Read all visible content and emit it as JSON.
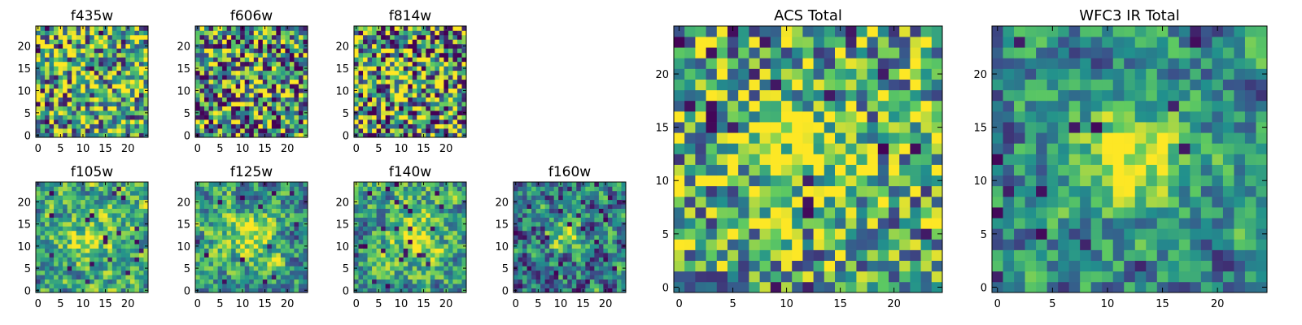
{
  "figure": {
    "background": "#ffffff",
    "colormap": "viridis",
    "colormap_stops": [
      "#440154",
      "#3b528b",
      "#21908d",
      "#5dc962",
      "#fde725"
    ]
  },
  "chart_data": [
    {
      "type": "heatmap",
      "title": "f435w",
      "x_ticks": [
        "0",
        "5",
        "10",
        "15",
        "20"
      ],
      "y_ticks": [
        "0",
        "5",
        "10",
        "15",
        "20"
      ],
      "grid_size": 25,
      "xlim": [
        -0.5,
        24.5
      ],
      "ylim": [
        -0.5,
        24.5
      ],
      "seed": 11,
      "smooth": 0,
      "blob": {
        "x": 12,
        "y": 12,
        "r": 4,
        "amp": 0.05
      },
      "bias": 0.62,
      "spread": 0.55,
      "dark_frac": 0.04
    },
    {
      "type": "heatmap",
      "title": "f606w",
      "x_ticks": [
        "0",
        "5",
        "10",
        "15",
        "20"
      ],
      "y_ticks": [
        "0",
        "5",
        "10",
        "15",
        "20"
      ],
      "grid_size": 25,
      "xlim": [
        -0.5,
        24.5
      ],
      "ylim": [
        -0.5,
        24.5
      ],
      "seed": 23,
      "smooth": 0,
      "blob": {
        "x": 11,
        "y": 12,
        "r": 2.5,
        "amp": 0.35
      },
      "bias": 0.52,
      "spread": 0.6,
      "dark_frac": 0.05
    },
    {
      "type": "heatmap",
      "title": "f814w",
      "x_ticks": [
        "0",
        "5",
        "10",
        "15",
        "20"
      ],
      "y_ticks": [
        "0",
        "5",
        "10",
        "15",
        "20"
      ],
      "grid_size": 25,
      "xlim": [
        -0.5,
        24.5
      ],
      "ylim": [
        -0.5,
        24.5
      ],
      "seed": 37,
      "smooth": 0,
      "blob": {
        "x": 12,
        "y": 12,
        "r": 3,
        "amp": 0.3
      },
      "bias": 0.55,
      "spread": 0.65,
      "dark_frac": 0.06
    },
    {
      "type": "heatmap",
      "title": "f105w",
      "x_ticks": [
        "0",
        "5",
        "10",
        "15",
        "20"
      ],
      "y_ticks": [
        "0",
        "5",
        "10",
        "15",
        "20"
      ],
      "grid_size": 25,
      "xlim": [
        -0.5,
        24.5
      ],
      "ylim": [
        -0.5,
        24.5
      ],
      "seed": 41,
      "smooth": 1,
      "blob": {
        "x": 12,
        "y": 12,
        "r": 4,
        "amp": 0.3
      },
      "bias": 0.58,
      "spread": 0.55,
      "dark_frac": 0.03
    },
    {
      "type": "heatmap",
      "title": "f125w",
      "x_ticks": [
        "0",
        "5",
        "10",
        "15",
        "20"
      ],
      "y_ticks": [
        "0",
        "5",
        "10",
        "15",
        "20"
      ],
      "grid_size": 25,
      "xlim": [
        -0.5,
        24.5
      ],
      "ylim": [
        -0.5,
        24.5
      ],
      "seed": 53,
      "smooth": 1,
      "blob": {
        "x": 12,
        "y": 12,
        "r": 4,
        "amp": 0.35
      },
      "bias": 0.55,
      "spread": 0.55,
      "dark_frac": 0.03
    },
    {
      "type": "heatmap",
      "title": "f140w",
      "x_ticks": [
        "0",
        "5",
        "10",
        "15",
        "20"
      ],
      "y_ticks": [
        "0",
        "5",
        "10",
        "15",
        "20"
      ],
      "grid_size": 25,
      "xlim": [
        -0.5,
        24.5
      ],
      "ylim": [
        -0.5,
        24.5
      ],
      "seed": 67,
      "smooth": 1,
      "blob": {
        "x": 13,
        "y": 12,
        "r": 4,
        "amp": 0.35
      },
      "bias": 0.58,
      "spread": 0.55,
      "dark_frac": 0.03
    },
    {
      "type": "heatmap",
      "title": "f160w",
      "x_ticks": [
        "0",
        "5",
        "10",
        "15",
        "20"
      ],
      "y_ticks": [
        "0",
        "5",
        "10",
        "15",
        "20"
      ],
      "grid_size": 25,
      "xlim": [
        -0.5,
        24.5
      ],
      "ylim": [
        -0.5,
        24.5
      ],
      "seed": 79,
      "smooth": 1,
      "blob": {
        "x": 11,
        "y": 13,
        "r": 3,
        "amp": 0.45
      },
      "bias": 0.42,
      "spread": 0.6,
      "dark_frac": 0.06
    },
    {
      "type": "heatmap",
      "title": "ACS Total",
      "x_ticks": [
        "0",
        "5",
        "10",
        "15",
        "20"
      ],
      "y_ticks": [
        "0",
        "5",
        "10",
        "15",
        "20"
      ],
      "grid_size": 25,
      "xlim": [
        -0.5,
        24.5
      ],
      "ylim": [
        -0.5,
        24.5
      ],
      "seed": 97,
      "smooth": 0,
      "blob": {
        "x": 11,
        "y": 13,
        "r": 3.5,
        "amp": 0.35
      },
      "bias": 0.6,
      "spread": 0.45,
      "dark_frac": 0.04
    },
    {
      "type": "heatmap",
      "title": "WFC3 IR Total",
      "x_ticks": [
        "0",
        "5",
        "10",
        "15",
        "20"
      ],
      "y_ticks": [
        "0",
        "5",
        "10",
        "15",
        "20"
      ],
      "grid_size": 25,
      "xlim": [
        -0.5,
        24.5
      ],
      "ylim": [
        -0.5,
        24.5
      ],
      "seed": 113,
      "smooth": 1,
      "blob": {
        "x": 12,
        "y": 12,
        "r": 3.5,
        "amp": 0.5
      },
      "bias": 0.48,
      "spread": 0.5,
      "dark_frac": 0.03
    }
  ]
}
